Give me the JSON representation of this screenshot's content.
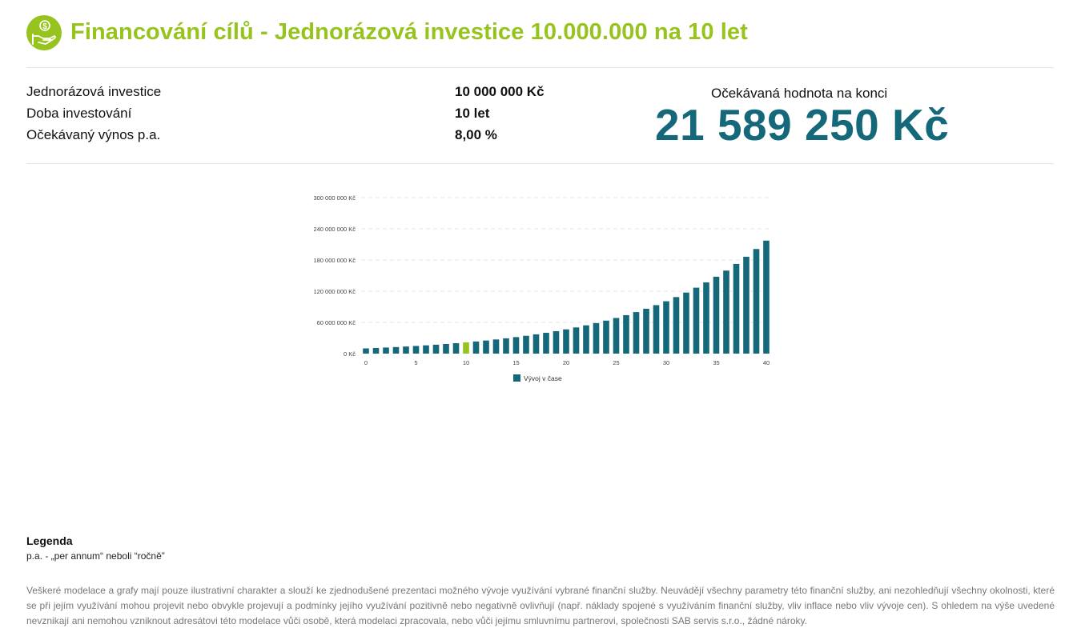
{
  "header": {
    "title": "Financování cílů - Jednorázová investice 10.000.000 na 10 let",
    "icon": "hand-money-icon",
    "accent_color": "#97c31e"
  },
  "params": [
    {
      "label": "Jednorázová investice",
      "value": "10 000 000 Kč"
    },
    {
      "label": "Doba investování",
      "value": "10 let"
    },
    {
      "label": "Očekávaný výnos p.a.",
      "value": "8,00 %"
    }
  ],
  "result": {
    "label": "Očekávaná hodnota na konci",
    "value": "21 589 250 Kč",
    "color": "#15687a"
  },
  "chart_data": {
    "type": "bar",
    "x": [
      0,
      1,
      2,
      3,
      4,
      5,
      6,
      7,
      8,
      9,
      10,
      11,
      12,
      13,
      14,
      15,
      16,
      17,
      18,
      19,
      20,
      21,
      22,
      23,
      24,
      25,
      26,
      27,
      28,
      29,
      30,
      31,
      32,
      33,
      34,
      35,
      36,
      37,
      38,
      39,
      40
    ],
    "x_ticks": [
      0,
      5,
      10,
      15,
      20,
      25,
      30,
      35,
      40
    ],
    "y_ticks": [
      0,
      60000000,
      120000000,
      180000000,
      240000000,
      300000000
    ],
    "y_tick_labels": [
      "0 Kč",
      "60 000 000 Kč",
      "120 000 000 Kč",
      "180 000 000 Kč",
      "240 000 000 Kč",
      "300 000 000 Kč"
    ],
    "ylim": [
      0,
      300000000
    ],
    "grid": true,
    "legend_position": "bottom",
    "series": [
      {
        "name": "Vývoj v čase",
        "color": "#15687a",
        "highlight_index": 10,
        "highlight_color": "#97c31e",
        "values": [
          10000000,
          10800000,
          11664000,
          12597120,
          13604890,
          14693281,
          15868743,
          17138243,
          18509302,
          19990046,
          21589250,
          23316390,
          25181701,
          27196237,
          29371936,
          31721691,
          34259426,
          37000180,
          39960195,
          43157011,
          46609571,
          50338337,
          54365404,
          58714636,
          63411807,
          68484752,
          73963532,
          79880614,
          86271064,
          93172749,
          100626569,
          108676694,
          117370830,
          126760496,
          136901336,
          147853443,
          159681718,
          172456255,
          186252756,
          201152977,
          217245215
        ]
      }
    ]
  },
  "legend": {
    "title": "Legenda",
    "text": "p.a. - „per annum“ neboli “ročně”"
  },
  "disclaimer": "Veškeré modelace a grafy mají pouze ilustrativní charakter a slouží ke zjednodušené prezentaci možného vývoje využívání vybrané finanční služby. Neuvádějí všechny parametry této finanční služby, ani nezohledňují všechny okolnosti, které se při jejím využívání mohou projevit nebo obvykle projevují a podmínky jejího využívání pozitivně nebo negativně ovlivňují (např. náklady spojené s využíváním finanční služby, vliv inflace nebo vliv vývoje cen). S ohledem na výše uvedené nevznikají ani nemohou vzniknout adresátovi této modelace vůči osobě, která modelaci zpracovala, nebo vůči jejímu smluvnímu partnerovi, společnosti SAB servis s.r.o., žádné nároky."
}
